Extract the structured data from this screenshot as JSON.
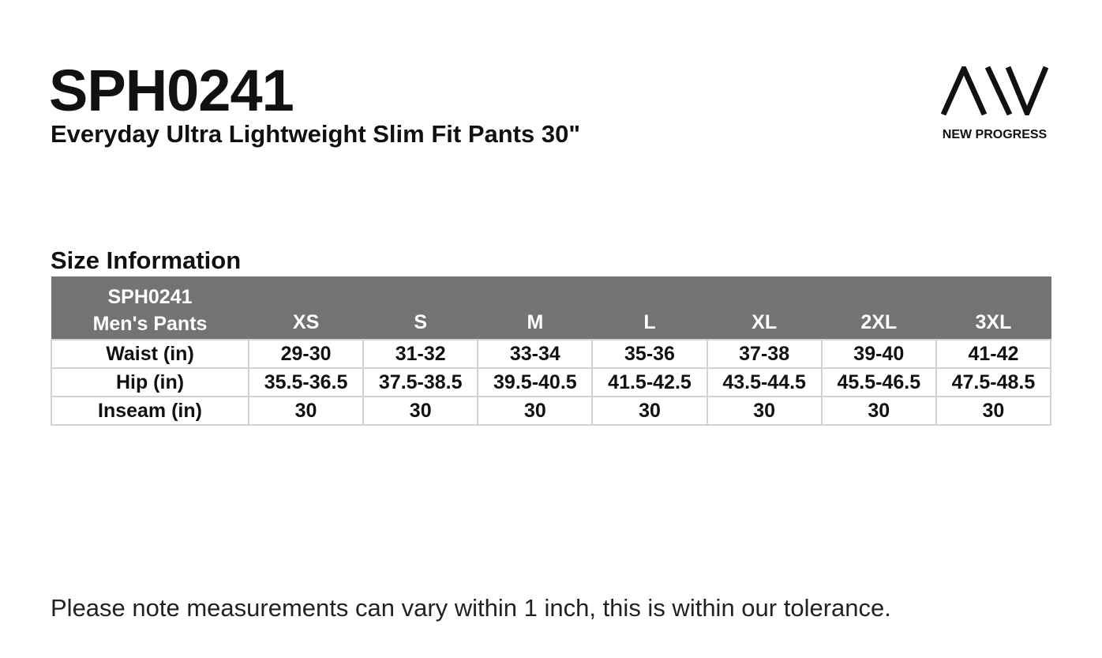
{
  "header": {
    "product_code": "SPH0241",
    "product_name": "Everyday Ultra Lightweight Slim Fit Pants 30\""
  },
  "logo": {
    "icon": "aiv-logo-icon",
    "text": "NEW PROGRESS"
  },
  "size_section": {
    "title": "Size Information",
    "corner_line1": "SPH0241",
    "corner_line2": "Men's Pants",
    "sizes": [
      "XS",
      "S",
      "M",
      "L",
      "XL",
      "2XL",
      "3XL"
    ],
    "rows": [
      {
        "label": "Waist (in)",
        "values": [
          "29-30",
          "31-32",
          "33-34",
          "35-36",
          "37-38",
          "39-40",
          "41-42"
        ]
      },
      {
        "label": "Hip (in)",
        "values": [
          "35.5-36.5",
          "37.5-38.5",
          "39.5-40.5",
          "41.5-42.5",
          "43.5-44.5",
          "45.5-46.5",
          "47.5-48.5"
        ]
      },
      {
        "label": "Inseam (in)",
        "values": [
          "30",
          "30",
          "30",
          "30",
          "30",
          "30",
          "30"
        ]
      }
    ],
    "colors": {
      "header_bg": "#737373",
      "header_text": "#ffffff",
      "cell_border": "#d2d2d2"
    }
  },
  "footer": {
    "note": "Please note measurements can vary within 1 inch, this is within our tolerance."
  }
}
